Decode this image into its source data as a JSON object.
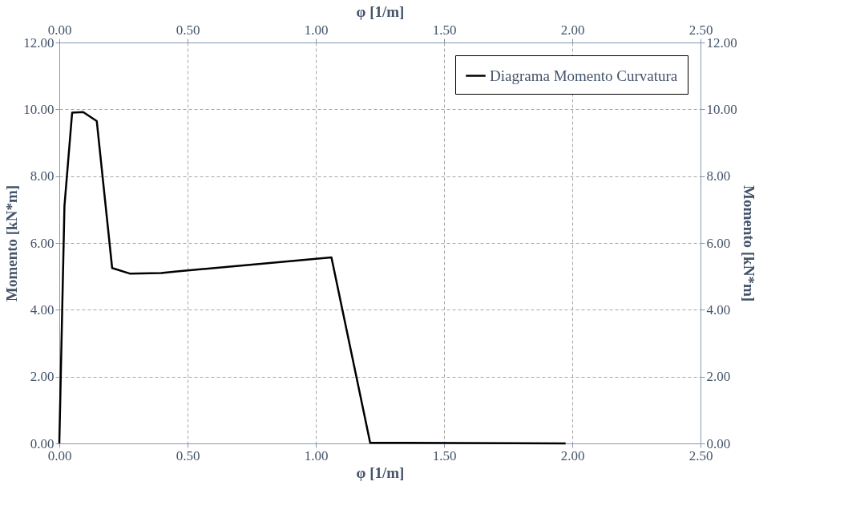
{
  "chart_data": {
    "type": "line",
    "xlabel": "φ [1/m]",
    "ylabel": "Momento [kN*m]",
    "x2label": "φ [1/m]",
    "y2label": "Momento [kN*m]",
    "series": [
      {
        "name": "Diagrama Momento Curvatura",
        "color": "#000000",
        "x": [
          0,
          0.02,
          0.05,
          0.093,
          0.146,
          0.206,
          0.277,
          0.397,
          0.458,
          1.061,
          1.212,
          1.974
        ],
        "values": [
          0,
          7.1,
          9.9,
          9.92,
          9.65,
          5.25,
          5.08,
          5.1,
          5.15,
          5.57,
          0.02,
          0
        ]
      }
    ],
    "xlim": [
      0,
      2.5
    ],
    "xticks": [
      {
        "value": 0,
        "label": "0.00"
      },
      {
        "value": 0.5,
        "label": "0.50"
      },
      {
        "value": 1,
        "label": "1.00"
      },
      {
        "value": 1.5,
        "label": "1.50"
      },
      {
        "value": 2,
        "label": "2.00"
      },
      {
        "value": 2.5,
        "label": "2.50"
      }
    ],
    "x2lim": [
      0,
      2.5
    ],
    "x2ticks": [
      {
        "value": 0,
        "label": "0.00"
      },
      {
        "value": 0.5,
        "label": "0.50"
      },
      {
        "value": 1,
        "label": "1.00"
      },
      {
        "value": 1.5,
        "label": "1.50"
      },
      {
        "value": 2,
        "label": "2.00"
      },
      {
        "value": 2.5,
        "label": "2.50"
      }
    ],
    "ylim": [
      0,
      12
    ],
    "yticks": [
      {
        "value": 0,
        "label": "0.00"
      },
      {
        "value": 2,
        "label": "2.00"
      },
      {
        "value": 4,
        "label": "4.00"
      },
      {
        "value": 6,
        "label": "6.00"
      },
      {
        "value": 8,
        "label": "8.00"
      },
      {
        "value": 10,
        "label": "10.00"
      },
      {
        "value": 12,
        "label": "12.00"
      }
    ],
    "y2lim": [
      0,
      12
    ],
    "y2ticks": [
      {
        "value": 0,
        "label": "0.00"
      },
      {
        "value": 2,
        "label": "2.00"
      },
      {
        "value": 4,
        "label": "4.00"
      },
      {
        "value": 6,
        "label": "6.00"
      },
      {
        "value": 8,
        "label": "8.00"
      },
      {
        "value": 10,
        "label": "10.00"
      },
      {
        "value": 12,
        "label": "12.00"
      }
    ],
    "grid": true,
    "legend": "top right",
    "marker": "none",
    "line_style": "solid"
  }
}
